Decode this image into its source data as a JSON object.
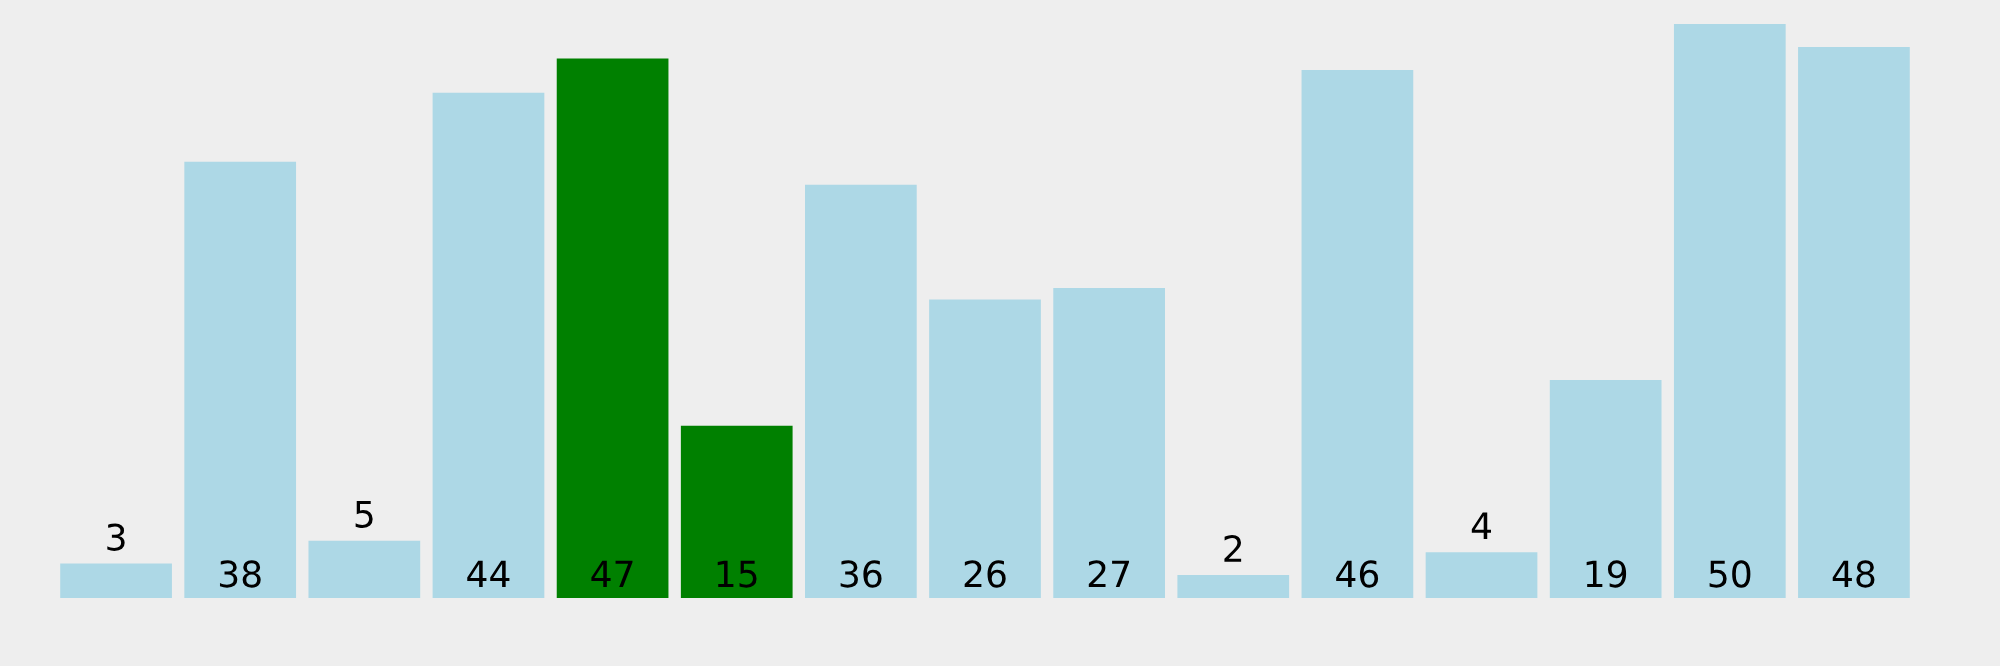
{
  "chart_data": {
    "type": "bar",
    "categories": [
      null,
      null,
      null,
      null,
      null,
      null,
      null,
      null,
      null,
      null,
      null,
      null,
      null,
      null,
      null
    ],
    "values": [
      3,
      38,
      5,
      44,
      47,
      15,
      36,
      26,
      27,
      2,
      46,
      4,
      19,
      50,
      48
    ],
    "colors": [
      "#add8e6",
      "#add8e6",
      "#add8e6",
      "#add8e6",
      "#008000",
      "#008000",
      "#add8e6",
      "#add8e6",
      "#add8e6",
      "#add8e6",
      "#add8e6",
      "#add8e6",
      "#add8e6",
      "#add8e6",
      "#add8e6"
    ],
    "data_labels": true
  }
}
